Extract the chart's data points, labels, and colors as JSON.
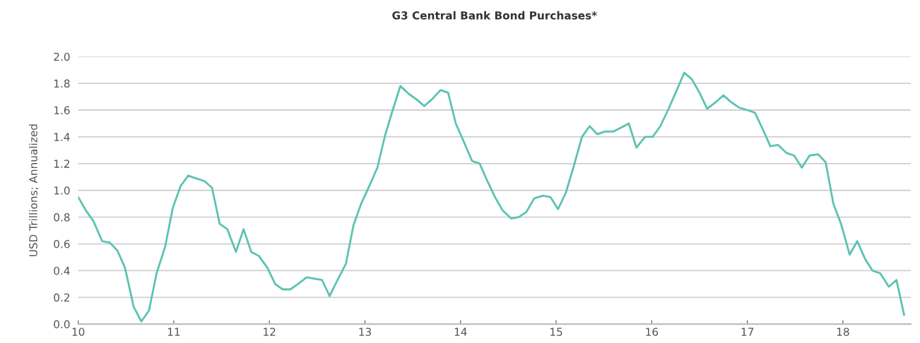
{
  "chart_data": {
    "type": "line",
    "title": "G3 Central Bank Bond Purchases*",
    "ylabel": "USD Trillions; Annualized",
    "x": [
      10.0,
      10.08,
      10.16,
      10.25,
      10.33,
      10.41,
      10.49,
      10.58,
      10.66,
      10.74,
      10.82,
      10.91,
      10.99,
      11.07,
      11.15,
      11.23,
      11.32,
      11.4,
      11.48,
      11.56,
      11.65,
      11.73,
      11.81,
      11.89,
      11.98,
      12.06,
      12.14,
      12.22,
      12.3,
      12.39,
      12.47,
      12.55,
      12.63,
      12.72,
      12.8,
      12.88,
      12.96,
      13.05,
      13.13,
      13.21,
      13.29,
      13.37,
      13.46,
      13.54,
      13.62,
      13.7,
      13.79,
      13.87,
      13.95,
      14.03,
      14.12,
      14.2,
      14.28,
      14.36,
      14.44,
      14.53,
      14.61,
      14.69,
      14.77,
      14.86,
      14.94,
      15.02,
      15.1,
      15.18,
      15.27,
      15.35,
      15.43,
      15.51,
      15.6,
      15.68,
      15.76,
      15.84,
      15.93,
      16.01,
      16.09,
      16.17,
      16.25,
      16.34,
      16.42,
      16.5,
      16.58,
      16.67,
      16.75,
      16.83,
      16.91,
      17.0,
      17.08,
      17.16,
      17.24,
      17.32,
      17.41,
      17.49,
      17.57,
      17.65,
      17.74,
      17.82,
      17.9,
      17.98,
      18.07,
      18.15,
      18.23,
      18.31,
      18.39,
      18.48,
      18.56,
      18.64
    ],
    "series": [
      {
        "color": "#5cc2b2",
        "values": [
          0.95,
          0.85,
          0.77,
          0.62,
          0.61,
          0.55,
          0.42,
          0.13,
          0.02,
          0.1,
          0.38,
          0.58,
          0.87,
          1.03,
          1.11,
          1.09,
          1.07,
          1.02,
          0.75,
          0.71,
          0.54,
          0.71,
          0.54,
          0.51,
          0.42,
          0.3,
          0.26,
          0.26,
          0.3,
          0.35,
          0.34,
          0.33,
          0.21,
          0.34,
          0.45,
          0.74,
          0.9,
          1.04,
          1.17,
          1.41,
          1.6,
          1.78,
          1.72,
          1.68,
          1.63,
          1.68,
          1.75,
          1.73,
          1.5,
          1.37,
          1.22,
          1.2,
          1.07,
          0.95,
          0.85,
          0.79,
          0.8,
          0.84,
          0.94,
          0.96,
          0.95,
          0.86,
          0.98,
          1.17,
          1.4,
          1.48,
          1.42,
          1.44,
          1.44,
          1.47,
          1.5,
          1.32,
          1.4,
          1.4,
          1.48,
          1.6,
          1.73,
          1.88,
          1.83,
          1.73,
          1.61,
          1.66,
          1.71,
          1.66,
          1.62,
          1.6,
          1.58,
          1.46,
          1.33,
          1.34,
          1.28,
          1.26,
          1.17,
          1.26,
          1.27,
          1.21,
          0.9,
          0.75,
          0.52,
          0.62,
          0.49,
          0.4,
          0.38,
          0.28,
          0.33,
          0.07
        ]
      }
    ],
    "xlim": [
      10,
      18.71
    ],
    "xticks": [
      10,
      11,
      12,
      13,
      14,
      15,
      16,
      17,
      18
    ],
    "ylim": [
      0,
      2.0
    ],
    "yticks": [
      {
        "value": 0,
        "label": "0.0"
      },
      0.2,
      0.4,
      0.6,
      0.8,
      {
        "value": 1.0,
        "label": "1.0"
      },
      1.2,
      1.4,
      1.6,
      1.8,
      {
        "value": 2.0,
        "label": "2.0"
      }
    ],
    "grid": "y",
    "marker": "none",
    "line_style": "solid"
  }
}
